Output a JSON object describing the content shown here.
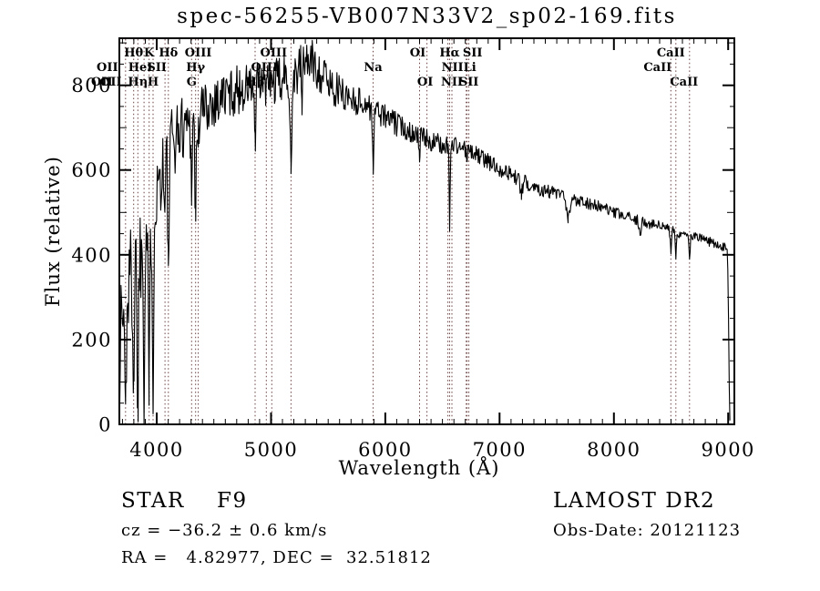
{
  "title": "spec-56255-VB007N33V2_sp02-169.fits",
  "annotations": {
    "class_line": "STAR    F9",
    "cz_line": "cz = −36.2 ± 0.6 km/s",
    "radec_line": "RA =   4.82977, DEC =  32.51812",
    "survey_line": "LAMOST DR2",
    "obsdate_line": "Obs-Date: 20121123"
  },
  "chart_data": {
    "type": "line",
    "title": "spec-56255-VB007N33V2_sp02-169.fits",
    "xlabel": "Wavelength (Å)",
    "ylabel": "Flux (relative)",
    "xlim": [
      3673,
      9054
    ],
    "ylim": [
      0,
      911
    ],
    "xticks": [
      4000,
      5000,
      6000,
      7000,
      8000,
      9000
    ],
    "yticks": [
      0,
      200,
      400,
      600,
      800
    ],
    "x_minor_step": 100,
    "y_minor_step": 50,
    "grid": false,
    "legend": "none",
    "line_color": "#000000",
    "marker_line_color": "#6b4242",
    "spectral_line_markers": [
      3727,
      3798,
      3835,
      3889,
      3934,
      3968,
      4072,
      4102,
      4305,
      4340,
      4363,
      4861,
      4959,
      5007,
      5175,
      5893,
      6300,
      6364,
      6548,
      6563,
      6583,
      6708,
      6716,
      6731,
      8498,
      8542,
      8662
    ],
    "spectral_line_labels": [
      {
        "label": "Hθ",
        "wavelength": 3798,
        "row": 1,
        "dx": 0
      },
      {
        "label": "K",
        "wavelength": 3934,
        "row": 1,
        "dx": 0
      },
      {
        "label": "Hδ",
        "wavelength": 4102,
        "row": 1,
        "dx": 0
      },
      {
        "label": "OIII",
        "wavelength": 4363,
        "row": 1,
        "dx": 0
      },
      {
        "label": "OIII",
        "wavelength": 5007,
        "row": 1,
        "dx": 2
      },
      {
        "label": "OI",
        "wavelength": 6300,
        "row": 1,
        "dx": -2
      },
      {
        "label": "Hα",
        "wavelength": 6563,
        "row": 1,
        "dx": 0
      },
      {
        "label": "SII",
        "wavelength": 6716,
        "row": 1,
        "dx": 6
      },
      {
        "label": "CaII",
        "wavelength": 8498,
        "row": 1,
        "dx": 0
      },
      {
        "label": "OII",
        "wavelength": 3727,
        "row": 2,
        "dx": -20
      },
      {
        "label": "HeI",
        "wavelength": 3889,
        "row": 2,
        "dx": -4
      },
      {
        "label": "SII",
        "wavelength": 4072,
        "row": 2,
        "dx": -9
      },
      {
        "label": "Hγ",
        "wavelength": 4340,
        "row": 2,
        "dx": 0
      },
      {
        "label": "OIII",
        "wavelength": 4959,
        "row": 2,
        "dx": -2
      },
      {
        "label": "Na",
        "wavelength": 5893,
        "row": 2,
        "dx": 0
      },
      {
        "label": "NII",
        "wavelength": 6548,
        "row": 2,
        "dx": 5
      },
      {
        "label": "Li",
        "wavelength": 6708,
        "row": 2,
        "dx": 4
      },
      {
        "label": "CaII",
        "wavelength": 8542,
        "row": 2,
        "dx": -20
      },
      {
        "label": "OII",
        "wavelength": 3727,
        "row": 3,
        "dx": -26
      },
      {
        "label": "OII",
        "wavelength": 3727,
        "row": 3,
        "dx": -16
      },
      {
        "label": "Hη",
        "wavelength": 3835,
        "row": 3,
        "dx": 0
      },
      {
        "label": "H",
        "wavelength": 3968,
        "row": 3,
        "dx": 0
      },
      {
        "label": "G",
        "wavelength": 4305,
        "row": 3,
        "dx": 0
      },
      {
        "label": "Hβ",
        "wavelength": 4861,
        "row": 3,
        "dx": 0
      },
      {
        "label": "OI",
        "wavelength": 6364,
        "row": 3,
        "dx": -2
      },
      {
        "label": "NII",
        "wavelength": 6583,
        "row": 3,
        "dx": 0
      },
      {
        "label": "SII",
        "wavelength": 6731,
        "row": 3,
        "dx": 0
      },
      {
        "label": "CaII",
        "wavelength": 8662,
        "row": 3,
        "dx": -6
      }
    ],
    "continuum_points": [
      [
        3673,
        210
      ],
      [
        3700,
        260
      ],
      [
        3730,
        300
      ],
      [
        3760,
        330
      ],
      [
        3800,
        370
      ],
      [
        3840,
        400
      ],
      [
        3880,
        430
      ],
      [
        3920,
        465
      ],
      [
        3960,
        495
      ],
      [
        4000,
        555
      ],
      [
        4040,
        600
      ],
      [
        4080,
        630
      ],
      [
        4120,
        655
      ],
      [
        4160,
        675
      ],
      [
        4200,
        695
      ],
      [
        4250,
        710
      ],
      [
        4300,
        722
      ],
      [
        4350,
        732
      ],
      [
        4400,
        742
      ],
      [
        4500,
        762
      ],
      [
        4600,
        778
      ],
      [
        4700,
        788
      ],
      [
        4800,
        795
      ],
      [
        4900,
        800
      ],
      [
        5000,
        805
      ],
      [
        5100,
        812
      ],
      [
        5200,
        822
      ],
      [
        5280,
        852
      ],
      [
        5340,
        862
      ],
      [
        5400,
        842
      ],
      [
        5480,
        815
      ],
      [
        5560,
        792
      ],
      [
        5640,
        778
      ],
      [
        5720,
        768
      ],
      [
        5800,
        758
      ],
      [
        5900,
        746
      ],
      [
        6000,
        726
      ],
      [
        6100,
        708
      ],
      [
        6200,
        696
      ],
      [
        6300,
        680
      ],
      [
        6400,
        668
      ],
      [
        6500,
        658
      ],
      [
        6600,
        660
      ],
      [
        6700,
        650
      ],
      [
        6800,
        636
      ],
      [
        6900,
        620
      ],
      [
        7000,
        604
      ],
      [
        7100,
        590
      ],
      [
        7200,
        574
      ],
      [
        7300,
        562
      ],
      [
        7400,
        552
      ],
      [
        7500,
        544
      ],
      [
        7600,
        532
      ],
      [
        7700,
        530
      ],
      [
        7800,
        520
      ],
      [
        7900,
        510
      ],
      [
        8000,
        499
      ],
      [
        8100,
        490
      ],
      [
        8200,
        482
      ],
      [
        8300,
        474
      ],
      [
        8400,
        468
      ],
      [
        8500,
        458
      ],
      [
        8600,
        450
      ],
      [
        8700,
        444
      ],
      [
        8800,
        434
      ],
      [
        8900,
        426
      ],
      [
        8990,
        414
      ],
      [
        9000,
        340
      ],
      [
        9006,
        160
      ],
      [
        9012,
        20
      ],
      [
        9016,
        4
      ]
    ],
    "absorption_dips": [
      [
        3727,
        260,
        9
      ],
      [
        3798,
        245,
        8
      ],
      [
        3835,
        330,
        8
      ],
      [
        3889,
        320,
        8
      ],
      [
        3934,
        430,
        8
      ],
      [
        3968,
        400,
        8
      ],
      [
        4072,
        130,
        7
      ],
      [
        4102,
        295,
        8
      ],
      [
        4305,
        140,
        10
      ],
      [
        4340,
        250,
        8
      ],
      [
        4363,
        70,
        7
      ],
      [
        4861,
        150,
        7
      ],
      [
        5175,
        220,
        9
      ],
      [
        5270,
        80,
        7
      ],
      [
        5893,
        160,
        7
      ],
      [
        6300,
        55,
        6
      ],
      [
        6563,
        185,
        6
      ],
      [
        6716,
        30,
        6
      ],
      [
        7190,
        30,
        15
      ],
      [
        7600,
        48,
        22
      ],
      [
        8230,
        25,
        12
      ],
      [
        8498,
        48,
        8
      ],
      [
        8542,
        58,
        8
      ],
      [
        8662,
        52,
        8
      ]
    ],
    "noise_profile": [
      [
        3673,
        150
      ],
      [
        3750,
        140
      ],
      [
        3900,
        120
      ],
      [
        4100,
        90
      ],
      [
        4300,
        75
      ],
      [
        4500,
        62
      ],
      [
        4800,
        58
      ],
      [
        5000,
        55
      ],
      [
        5200,
        58
      ],
      [
        5400,
        55
      ],
      [
        5600,
        40
      ],
      [
        5800,
        35
      ],
      [
        6000,
        30
      ],
      [
        6300,
        26
      ],
      [
        6600,
        22
      ],
      [
        7000,
        19
      ],
      [
        7400,
        17
      ],
      [
        7800,
        15
      ],
      [
        8200,
        13
      ],
      [
        8600,
        12
      ],
      [
        8990,
        11
      ],
      [
        9000,
        4
      ],
      [
        9020,
        1
      ]
    ],
    "noise_seed": 1337,
    "sample_step": 6
  }
}
